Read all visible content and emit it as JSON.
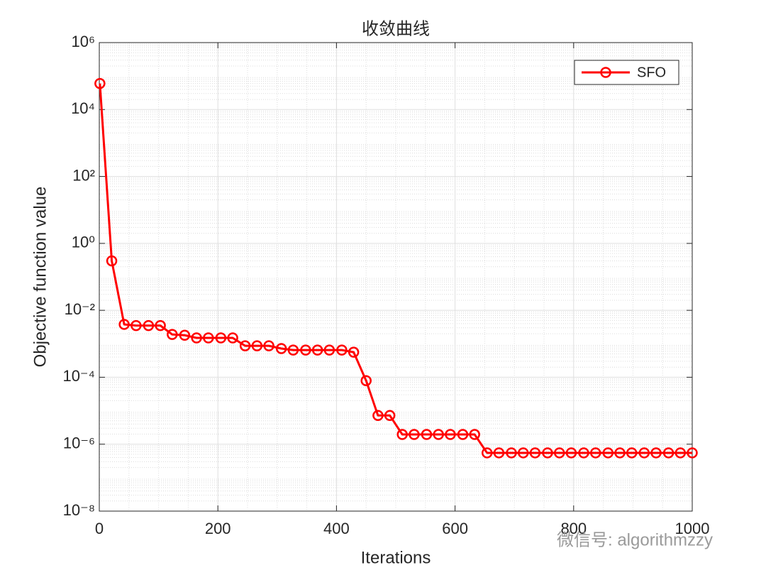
{
  "chart_data": {
    "type": "line",
    "title": "收敛曲线",
    "xlabel": "Iterations",
    "ylabel": "Objective function value",
    "x": [
      1,
      21,
      42,
      62,
      83,
      103,
      123,
      144,
      164,
      184,
      205,
      225,
      246,
      266,
      286,
      307,
      327,
      348,
      368,
      388,
      409,
      429,
      450,
      470,
      490,
      511,
      531,
      552,
      572,
      592,
      613,
      633,
      654,
      674,
      695,
      715,
      735,
      756,
      776,
      796,
      817,
      837,
      858,
      878,
      898,
      919,
      939,
      960,
      980,
      1000
    ],
    "series": [
      {
        "name": "SFO",
        "color": "#ff0000",
        "marker": "o",
        "values": [
          60000,
          0.3,
          0.0038,
          0.0035,
          0.0035,
          0.0035,
          0.0019,
          0.0018,
          0.0015,
          0.0015,
          0.0015,
          0.0015,
          0.00087,
          0.00087,
          0.00087,
          0.00072,
          0.00065,
          0.00065,
          0.00065,
          0.00065,
          0.00065,
          0.00056,
          7.9e-05,
          7.2e-06,
          7.2e-06,
          1.95e-06,
          1.95e-06,
          1.95e-06,
          1.95e-06,
          1.95e-06,
          1.95e-06,
          1.95e-06,
          5.5e-07,
          5.5e-07,
          5.5e-07,
          5.5e-07,
          5.5e-07,
          5.5e-07,
          5.5e-07,
          5.5e-07,
          5.5e-07,
          5.5e-07,
          5.5e-07,
          5.5e-07,
          5.5e-07,
          5.5e-07,
          5.5e-07,
          5.5e-07,
          5.5e-07,
          5.5e-07
        ]
      }
    ],
    "xlim": [
      0,
      1000
    ],
    "xticks": [
      0,
      200,
      400,
      600,
      800,
      1000
    ],
    "ylim": [
      1e-08,
      1000000.0
    ],
    "yscale": "log",
    "yticks": [
      {
        "value": 1e-08,
        "label": "10⁻⁸"
      },
      {
        "value": 1e-06,
        "label": "10⁻⁶"
      },
      {
        "value": 0.0001,
        "label": "10⁻⁴"
      },
      {
        "value": 0.01,
        "label": "10⁻²"
      },
      {
        "value": 1,
        "label": "10⁰"
      },
      {
        "value": 100,
        "label": "10²"
      },
      {
        "value": 10000,
        "label": "10⁴"
      },
      {
        "value": 1000000,
        "label": "10⁶"
      }
    ],
    "grid": true,
    "minor_grid": true,
    "legend": "upper right",
    "watermark": "微信号: algorithmzzy"
  }
}
